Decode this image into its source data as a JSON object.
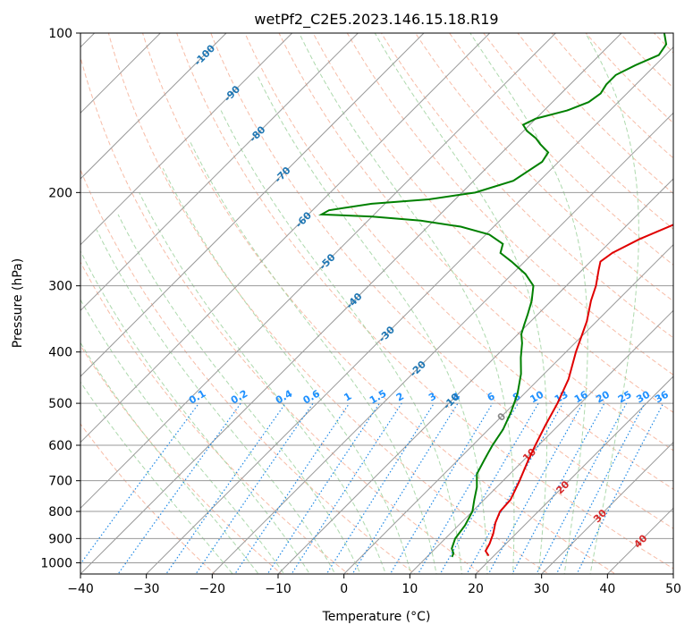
{
  "chart_data": {
    "type": "skewt",
    "title": "wetPf2_C2E5.2023.146.15.18.R19",
    "xlabel": "Temperature (°C)",
    "ylabel": "Pressure (hPa)",
    "xlim": [
      -40,
      50
    ],
    "ylim": [
      1050,
      100
    ],
    "x_ticks": [
      -40,
      -30,
      -20,
      -10,
      0,
      10,
      20,
      30,
      40,
      50
    ],
    "x_tick_labels": [
      "−40",
      "−30",
      "−20",
      "−10",
      "0",
      "10",
      "20",
      "30",
      "40",
      "50"
    ],
    "y_ticks": [
      1000,
      900,
      800,
      700,
      600,
      500,
      400,
      300,
      200,
      100
    ],
    "y_tick_labels": [
      "1000",
      "900",
      "800",
      "700",
      "600",
      "500",
      "400",
      "300",
      "200",
      "100"
    ],
    "colors": {
      "temperature": "#e00000",
      "dewpoint": "#008000",
      "dry_adiabat": "#f4a58a",
      "moist_adiabat": "#9fd29f",
      "mixing_ratio": "#1e88e5",
      "isotherm": "#999999",
      "isotherm_label_cold": "#1f77b4",
      "isotherm_label_warm": "#d62728",
      "isotherm_label_zero": "#888888"
    },
    "temperature_profile": [
      {
        "p": 970,
        "t": 19.2
      },
      {
        "p": 950,
        "t": 18.0
      },
      {
        "p": 920,
        "t": 17.5
      },
      {
        "p": 880,
        "t": 16.5
      },
      {
        "p": 840,
        "t": 15.2
      },
      {
        "p": 800,
        "t": 14.2
      },
      {
        "p": 760,
        "t": 14.0
      },
      {
        "p": 700,
        "t": 12.5
      },
      {
        "p": 650,
        "t": 11.0
      },
      {
        "p": 600,
        "t": 9.5
      },
      {
        "p": 550,
        "t": 8.0
      },
      {
        "p": 500,
        "t": 6.5
      },
      {
        "p": 450,
        "t": 4.5
      },
      {
        "p": 400,
        "t": 1.5
      },
      {
        "p": 350,
        "t": -1.5
      },
      {
        "p": 320,
        "t": -4.0
      },
      {
        "p": 300,
        "t": -5.5
      },
      {
        "p": 280,
        "t": -7.5
      },
      {
        "p": 270,
        "t": -8.5
      },
      {
        "p": 260,
        "t": -8.0
      },
      {
        "p": 245,
        "t": -6.0
      },
      {
        "p": 230,
        "t": -3.0
      },
      {
        "p": 215,
        "t": -1.0
      },
      {
        "p": 200,
        "t": -2.5
      },
      {
        "p": 185,
        "t": -5.0
      },
      {
        "p": 170,
        "t": -8.0
      },
      {
        "p": 155,
        "t": -11.5
      },
      {
        "p": 140,
        "t": -15.5
      },
      {
        "p": 130,
        "t": -17.5
      },
      {
        "p": 120,
        "t": -17.5
      },
      {
        "p": 112,
        "t": -16.0
      },
      {
        "p": 105,
        "t": -14.0
      },
      {
        "p": 100,
        "t": -13.5
      }
    ],
    "dewpoint_profile": [
      {
        "p": 975,
        "t": 13.8
      },
      {
        "p": 960,
        "t": 13.5
      },
      {
        "p": 940,
        "t": 12.5
      },
      {
        "p": 900,
        "t": 11.5
      },
      {
        "p": 850,
        "t": 11.0
      },
      {
        "p": 800,
        "t": 10.0
      },
      {
        "p": 760,
        "t": 8.5
      },
      {
        "p": 720,
        "t": 7.0
      },
      {
        "p": 680,
        "t": 5.0
      },
      {
        "p": 640,
        "t": 4.0
      },
      {
        "p": 620,
        "t": 3.5
      },
      {
        "p": 600,
        "t": 3.0
      },
      {
        "p": 560,
        "t": 2.2
      },
      {
        "p": 520,
        "t": 0.8
      },
      {
        "p": 480,
        "t": -1.0
      },
      {
        "p": 440,
        "t": -3.5
      },
      {
        "p": 410,
        "t": -6.0
      },
      {
        "p": 385,
        "t": -8.0
      },
      {
        "p": 370,
        "t": -9.5
      },
      {
        "p": 355,
        "t": -10.5
      },
      {
        "p": 340,
        "t": -11.5
      },
      {
        "p": 320,
        "t": -13.0
      },
      {
        "p": 300,
        "t": -15.0
      },
      {
        "p": 285,
        "t": -18.0
      },
      {
        "p": 270,
        "t": -22.0
      },
      {
        "p": 260,
        "t": -25.0
      },
      {
        "p": 250,
        "t": -26.0
      },
      {
        "p": 240,
        "t": -29.5
      },
      {
        "p": 232,
        "t": -35.0
      },
      {
        "p": 226,
        "t": -42.0
      },
      {
        "p": 222,
        "t": -50.0
      },
      {
        "p": 220,
        "t": -58.0
      },
      {
        "p": 216,
        "t": -57.5
      },
      {
        "p": 210,
        "t": -52.0
      },
      {
        "p": 206,
        "t": -44.0
      },
      {
        "p": 200,
        "t": -38.0
      },
      {
        "p": 190,
        "t": -34.0
      },
      {
        "p": 175,
        "t": -32.5
      },
      {
        "p": 168,
        "t": -33.0
      },
      {
        "p": 162,
        "t": -35.5
      },
      {
        "p": 158,
        "t": -37.0
      },
      {
        "p": 153,
        "t": -39.5
      },
      {
        "p": 149,
        "t": -41.0
      },
      {
        "p": 145,
        "t": -40.0
      },
      {
        "p": 140,
        "t": -36.5
      },
      {
        "p": 135,
        "t": -34.5
      },
      {
        "p": 130,
        "t": -34.0
      },
      {
        "p": 125,
        "t": -34.5
      },
      {
        "p": 120,
        "t": -34.5
      },
      {
        "p": 115,
        "t": -33.0
      },
      {
        "p": 110,
        "t": -31.0
      },
      {
        "p": 105,
        "t": -31.5
      },
      {
        "p": 100,
        "t": -33.5
      }
    ],
    "isotherm_labels": [
      {
        "t": -100,
        "p": 110,
        "text": "-100"
      },
      {
        "t": -90,
        "p": 130,
        "text": "-90"
      },
      {
        "t": -80,
        "p": 155,
        "text": "-80"
      },
      {
        "t": -70,
        "p": 185,
        "text": "-70"
      },
      {
        "t": -60,
        "p": 225,
        "text": "-60"
      },
      {
        "t": -50,
        "p": 270,
        "text": "-50"
      },
      {
        "t": -40,
        "p": 320,
        "text": "-40"
      },
      {
        "t": -30,
        "p": 370,
        "text": "-30"
      },
      {
        "t": -20,
        "p": 430,
        "text": "-20"
      },
      {
        "t": -10,
        "p": 495,
        "text": "-10"
      },
      {
        "t": 0,
        "p": 530,
        "text": "0"
      },
      {
        "t": 10,
        "p": 625,
        "text": "10"
      },
      {
        "t": 20,
        "p": 720,
        "text": "20"
      },
      {
        "t": 30,
        "p": 815,
        "text": "30"
      },
      {
        "t": 40,
        "p": 910,
        "text": "40"
      }
    ],
    "mixing_ratio_labels": [
      "0.1",
      "0.2",
      "0.4",
      "0.6",
      "1",
      "1.5",
      "2",
      "3",
      "4",
      "6",
      "8",
      "10",
      "13",
      "16",
      "20",
      "25",
      "30",
      "36"
    ],
    "mixing_ratio_label_pressure": 500
  }
}
